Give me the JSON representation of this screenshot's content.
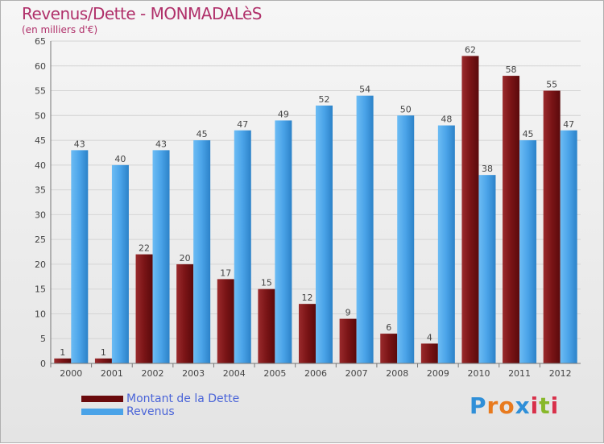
{
  "header": {
    "title": "Revenus/Dette - MONMADALèS",
    "subtitle": "(en milliers d'€)"
  },
  "chart_data": {
    "type": "bar",
    "categories": [
      "2000",
      "2001",
      "2002",
      "2003",
      "2004",
      "2005",
      "2006",
      "2007",
      "2008",
      "2009",
      "2010",
      "2011",
      "2012"
    ],
    "series": [
      {
        "name": "Montant de la Dette",
        "values": [
          1,
          1,
          22,
          20,
          17,
          15,
          12,
          9,
          6,
          4,
          62,
          58,
          55
        ],
        "color": "#7a1416"
      },
      {
        "name": "Revenus",
        "values": [
          43,
          40,
          43,
          45,
          47,
          49,
          52,
          54,
          50,
          48,
          38,
          45,
          47
        ],
        "color": "#4aa3e8"
      }
    ],
    "title": "Revenus/Dette - MONMADALèS",
    "ylabel": "(en milliers d'€)",
    "ylim": [
      0,
      65
    ],
    "yticks": [
      0,
      5,
      10,
      15,
      20,
      25,
      30,
      35,
      40,
      45,
      50,
      55,
      60,
      65
    ],
    "grid": true,
    "legend": "bottom-left"
  },
  "legend": {
    "items": [
      {
        "label": "Montant de la Dette",
        "color": "#7a1416"
      },
      {
        "label": "Revenus",
        "color": "#4aa3e8"
      }
    ]
  },
  "logo": {
    "letters": [
      "P",
      "r",
      "o",
      "x",
      "i",
      "t",
      "i"
    ],
    "colors": [
      "#2f8fd8",
      "#e87a1e",
      "#e87a1e",
      "#2f8fd8",
      "#d8304a",
      "#88b82a",
      "#d8304a"
    ]
  }
}
